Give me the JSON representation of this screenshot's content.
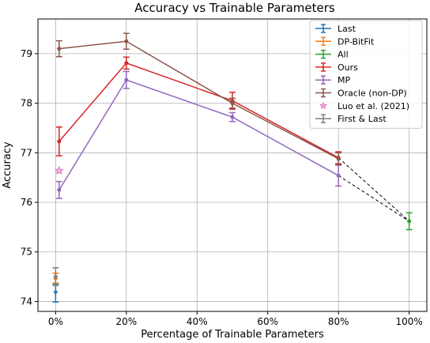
{
  "chart_data": {
    "type": "line",
    "title": "Accuracy vs Trainable Parameters",
    "xlabel": "Percentage of Trainable Parameters",
    "ylabel": "Accuracy",
    "xlim": [
      -5,
      105
    ],
    "ylim": [
      73.8,
      79.7
    ],
    "xticks": [
      0,
      20,
      40,
      60,
      80,
      100
    ],
    "xtick_labels": [
      "0%",
      "20%",
      "40%",
      "60%",
      "80%",
      "100%"
    ],
    "yticks": [
      74,
      75,
      76,
      77,
      78,
      79
    ],
    "ytick_labels": [
      "74",
      "75",
      "76",
      "77",
      "78",
      "79"
    ],
    "grid": true,
    "legend_position": "top-right",
    "series": [
      {
        "name": "Last",
        "color": "#1f77b4",
        "marker": "triangle-down",
        "points": [
          {
            "x": 0,
            "y": 74.17,
            "err": 0.18
          }
        ]
      },
      {
        "name": "DP-BitFit",
        "color": "#ff7f0e",
        "marker": "circle",
        "points": [
          {
            "x": 0,
            "y": 74.47,
            "err": 0.1
          }
        ]
      },
      {
        "name": "All",
        "color": "#2ca02c",
        "marker": "circle",
        "points": [
          {
            "x": 100,
            "y": 75.62,
            "err": 0.17
          }
        ]
      },
      {
        "name": "Ours",
        "color": "#d62728",
        "marker": "circle",
        "points": [
          {
            "x": 1,
            "y": 77.23,
            "err": 0.29
          },
          {
            "x": 20,
            "y": 78.81,
            "err": 0.12
          },
          {
            "x": 50,
            "y": 78.05,
            "err": 0.17
          },
          {
            "x": 80,
            "y": 76.9,
            "err": 0.12
          }
        ]
      },
      {
        "name": "MP",
        "color": "#9467bd",
        "marker": "circle",
        "points": [
          {
            "x": 1,
            "y": 76.25,
            "err": 0.17
          },
          {
            "x": 20,
            "y": 78.47,
            "err": 0.17
          },
          {
            "x": 50,
            "y": 77.72,
            "err": 0.09
          },
          {
            "x": 80,
            "y": 76.54,
            "err": 0.21
          }
        ]
      },
      {
        "name": "Oracle (non-DP)",
        "color": "#8c564b",
        "marker": "circle",
        "points": [
          {
            "x": 1,
            "y": 79.1,
            "err": 0.16
          },
          {
            "x": 20,
            "y": 79.25,
            "err": 0.16
          },
          {
            "x": 50,
            "y": 78.0,
            "err": 0.1
          },
          {
            "x": 80,
            "y": 76.88,
            "err": 0.12
          }
        ]
      },
      {
        "name": "Luo et al. (2021)",
        "color": "#e377c2",
        "marker": "star",
        "points": [
          {
            "x": 1,
            "y": 76.64
          }
        ]
      },
      {
        "name": "First & Last",
        "color": "#7f7f7f",
        "marker": "circle",
        "points": [
          {
            "x": 0,
            "y": 74.5,
            "err": 0.18
          }
        ]
      }
    ],
    "dashed_links": [
      {
        "from": [
          80,
          76.9
        ],
        "to": [
          100,
          75.62
        ]
      },
      {
        "from": [
          80,
          76.54
        ],
        "to": [
          100,
          75.62
        ]
      }
    ]
  }
}
